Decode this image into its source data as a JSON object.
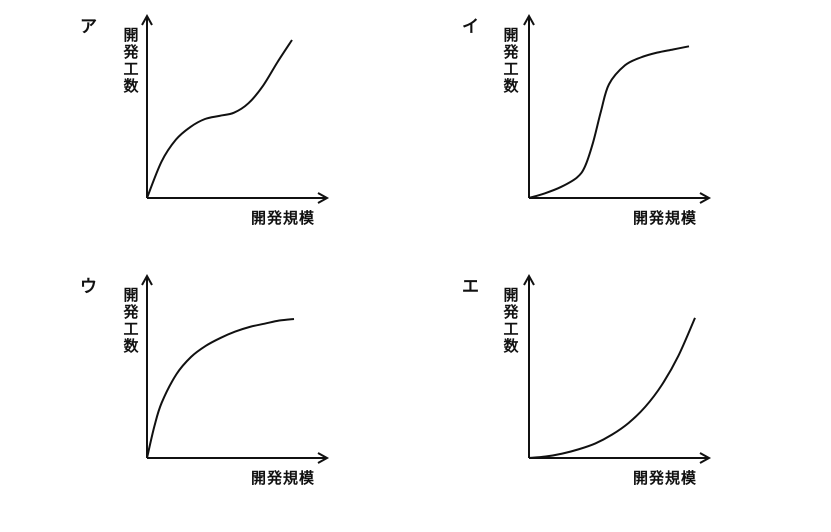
{
  "chart_data": [
    {
      "type": "line",
      "panel_label": "ア",
      "xlabel": "開発規模",
      "ylabel": "開発工数",
      "series": [
        {
          "x": [
            0,
            10,
            20,
            30,
            40,
            50,
            60,
            70,
            80,
            90,
            100
          ],
          "values": [
            0,
            23,
            37,
            45,
            50,
            52,
            54,
            60,
            71,
            86,
            100
          ]
        }
      ]
    },
    {
      "type": "line",
      "panel_label": "イ",
      "xlabel": "開発規模",
      "ylabel": "開発工数",
      "series": [
        {
          "x": [
            0,
            10,
            20,
            30,
            35,
            40,
            45,
            50,
            60,
            70,
            80,
            90,
            100
          ],
          "values": [
            0,
            3,
            7,
            13,
            20,
            35,
            55,
            72,
            84,
            89,
            92,
            94,
            96
          ]
        }
      ]
    },
    {
      "type": "line",
      "panel_label": "ウ",
      "xlabel": "開発規模",
      "ylabel": "開発工数",
      "series": [
        {
          "x": [
            0,
            5,
            10,
            20,
            30,
            40,
            50,
            60,
            70,
            80,
            90,
            100
          ],
          "values": [
            0,
            20,
            35,
            53,
            64,
            71,
            76,
            80,
            83,
            85,
            87,
            88
          ]
        }
      ]
    },
    {
      "type": "line",
      "panel_label": "エ",
      "xlabel": "開発規模",
      "ylabel": "開発工数",
      "series": [
        {
          "x": [
            0,
            10,
            20,
            30,
            40,
            50,
            60,
            70,
            80,
            90,
            100
          ],
          "values": [
            0,
            1,
            3,
            6,
            10,
            16,
            24,
            35,
            50,
            70,
            96
          ]
        }
      ]
    }
  ]
}
